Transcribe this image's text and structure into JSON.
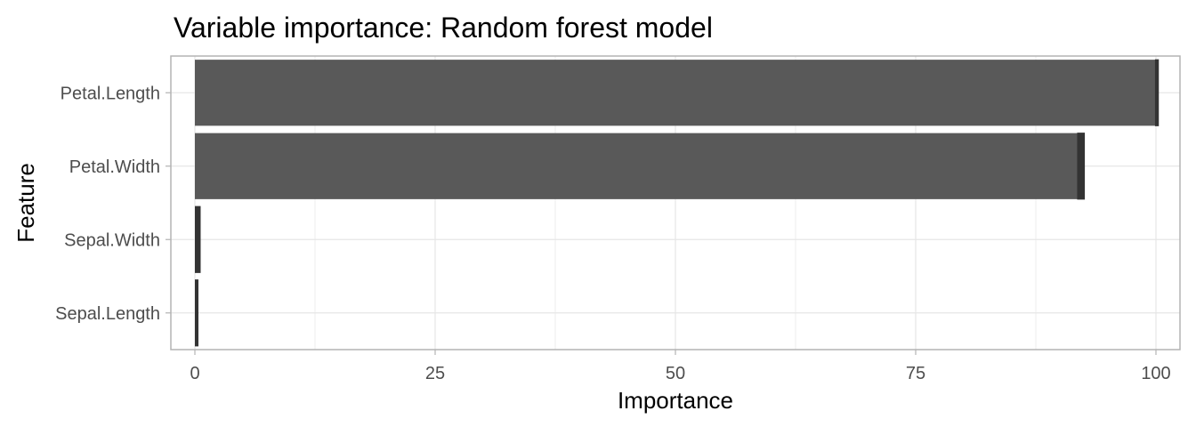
{
  "chart_data": {
    "type": "bar",
    "orientation": "horizontal",
    "title": "Variable importance: Random forest model",
    "xlabel": "Importance",
    "ylabel": "Feature",
    "categories": [
      "Petal.Length",
      "Petal.Width",
      "Sepal.Width",
      "Sepal.Length"
    ],
    "values": [
      100,
      92,
      0.3,
      0
    ],
    "error_upper": [
      100.3,
      92.6,
      0.6,
      0.25
    ],
    "error_lower": [
      99.9,
      91.8,
      0.0,
      0.0
    ],
    "xlim": [
      -2.5,
      102.5
    ],
    "xticks": [
      0,
      25,
      50,
      75,
      100
    ],
    "xtick_labels": [
      "0",
      "25",
      "50",
      "75",
      "100"
    ],
    "grid": true,
    "legend": "none",
    "bar_color": "#595959",
    "errorbar_color": "#333333",
    "grid_color": "#e6e6e6",
    "panel_border_color": "#b3b3b3"
  }
}
